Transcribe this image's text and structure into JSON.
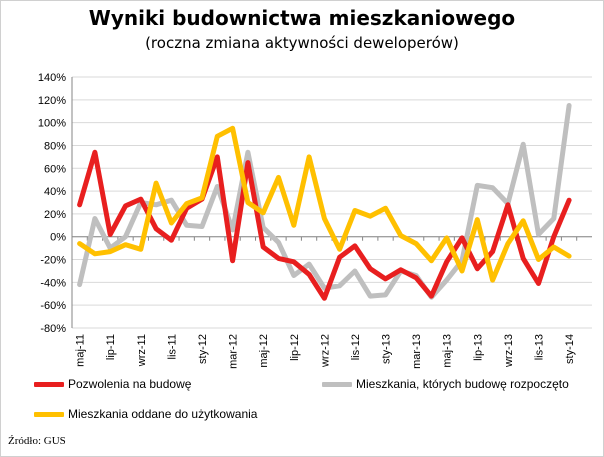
{
  "chart_data": {
    "type": "line",
    "title": "Wyniki budownictwa mieszkaniowego",
    "subtitle": "(roczna zmiana aktywności deweloperów)",
    "ylim": [
      -0.8,
      1.4
    ],
    "yticks": [
      "140%",
      "120%",
      "100%",
      "80%",
      "60%",
      "40%",
      "20%",
      "0%",
      "-20%",
      "-40%",
      "-60%",
      "-80%"
    ],
    "ytick_values": [
      1.4,
      1.2,
      1.0,
      0.8,
      0.6,
      0.4,
      0.2,
      0.0,
      -0.2,
      -0.4,
      -0.6,
      -0.8
    ],
    "categories": [
      "maj-11",
      "cze-11",
      "lip-11",
      "sie-11",
      "wrz-11",
      "paź-11",
      "lis-11",
      "gru-11",
      "sty-12",
      "lut-12",
      "mar-12",
      "kwi-12",
      "maj-12",
      "cze-12",
      "lip-12",
      "sie-12",
      "wrz-12",
      "paź-12",
      "lis-12",
      "gru-12",
      "sty-13",
      "lut-13",
      "mar-13",
      "kwi-13",
      "maj-13",
      "cze-13",
      "lip-13",
      "sie-13",
      "wrz-13",
      "paź-13",
      "lis-13",
      "gru-13",
      "sty-14",
      "lut-14"
    ],
    "x_labels": [
      "maj-11",
      "lip-11",
      "wrz-11",
      "lis-11",
      "sty-12",
      "mar-12",
      "maj-12",
      "lip-12",
      "wrz-12",
      "lis-12",
      "sty-13",
      "mar-13",
      "maj-13",
      "lip-13",
      "wrz-13",
      "lis-13",
      "sty-14"
    ],
    "series": [
      {
        "name": "Pozwolenia na budowę",
        "color": "#e81f1f",
        "values": [
          0.28,
          0.74,
          0.02,
          0.27,
          0.33,
          0.07,
          -0.03,
          0.25,
          0.33,
          0.7,
          -0.21,
          0.65,
          -0.09,
          -0.19,
          -0.22,
          -0.33,
          -0.54,
          -0.18,
          -0.08,
          -0.28,
          -0.37,
          -0.29,
          -0.36,
          -0.52,
          -0.22,
          -0.01,
          -0.28,
          -0.13,
          0.28,
          -0.19,
          -0.41,
          0.0,
          0.32,
          null
        ]
      },
      {
        "name": "Mieszkania, których budowę rozpoczęto",
        "color": "#bfbfbf",
        "values": [
          -0.42,
          0.16,
          -0.1,
          0.0,
          0.3,
          0.28,
          0.32,
          0.1,
          0.09,
          0.44,
          0.06,
          0.74,
          0.08,
          -0.05,
          -0.34,
          -0.24,
          -0.45,
          -0.43,
          -0.3,
          -0.52,
          -0.51,
          -0.3,
          -0.34,
          -0.53,
          -0.38,
          -0.21,
          0.45,
          0.43,
          0.29,
          0.81,
          0.02,
          0.16,
          1.15,
          null
        ]
      },
      {
        "name": "Mieszkania oddane do użytkowania",
        "color": "#ffc000",
        "values": [
          -0.06,
          -0.15,
          -0.13,
          -0.07,
          -0.11,
          0.47,
          0.12,
          0.29,
          0.34,
          0.88,
          0.95,
          0.3,
          0.21,
          0.52,
          0.1,
          0.7,
          0.16,
          -0.11,
          0.23,
          0.18,
          0.25,
          0.01,
          -0.06,
          -0.21,
          -0.01,
          -0.3,
          0.15,
          -0.38,
          -0.06,
          0.14,
          -0.2,
          -0.09,
          -0.17,
          null
        ]
      }
    ]
  },
  "legend": [
    {
      "label": "Pozwolenia na budowę",
      "color": "#e81f1f"
    },
    {
      "label": "Mieszkania, których budowę rozpoczęto",
      "color": "#bfbfbf"
    },
    {
      "label": "Mieszkania oddane do użytkowania",
      "color": "#ffc000"
    }
  ],
  "source": "Źródło: GUS"
}
